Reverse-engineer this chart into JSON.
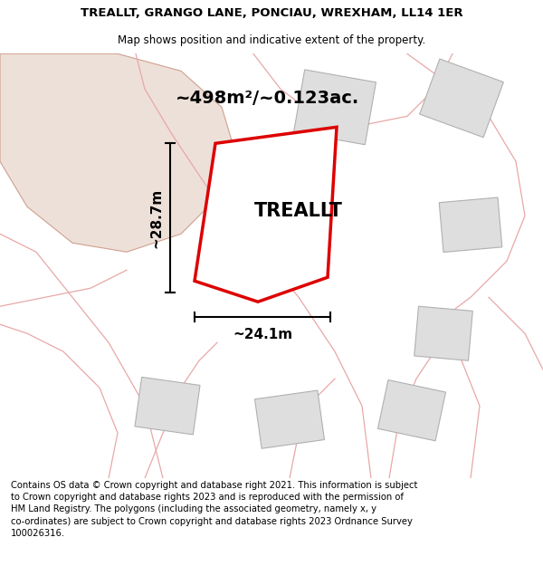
{
  "title_line1": "TREALLT, GRANGO LANE, PONCIAU, WREXHAM, LL14 1ER",
  "title_line2": "Map shows position and indicative extent of the property.",
  "footer_text": "Contains OS data © Crown copyright and database right 2021. This information is subject to Crown copyright and database rights 2023 and is reproduced with the permission of HM Land Registry. The polygons (including the associated geometry, namely x, y co-ordinates) are subject to Crown copyright and database rights 2023 Ordnance Survey 100026316.",
  "area_label": "~498m²/~0.123ac.",
  "width_label": "~24.1m",
  "height_label": "~28.7m",
  "property_label": "TREALLT",
  "map_bg": "#ffffff",
  "plot_edge": "#dd0000",
  "plot_fill": "#ffffff",
  "neighbor_fill": "#dedede",
  "neighbor_edge": "#b0b0b0",
  "pink_line": "#e8a8a8",
  "large_parcel_fill": "#e8d8d0",
  "large_parcel_edge": "#d0a0a0"
}
